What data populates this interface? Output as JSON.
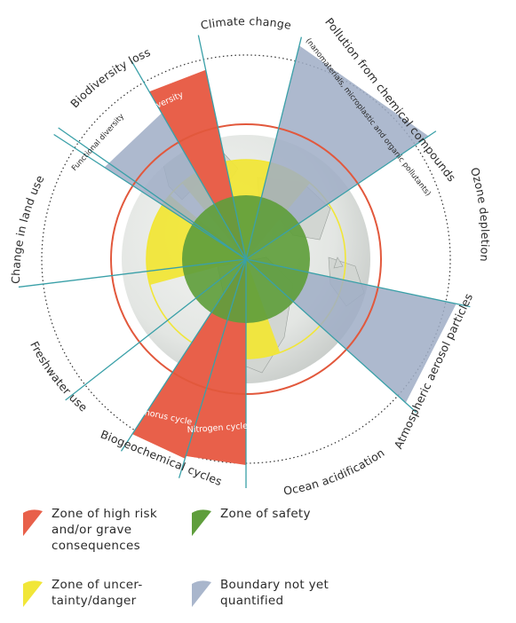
{
  "diagram": {
    "sectors": {
      "climate": "Climate change",
      "pollution": "Pollution from chemical compounds",
      "pollution_sub": "(nanomaterials, microplastic and organic pollutants)",
      "ozone": "Ozone depletion",
      "aerosol": "Atmospheric aerosol particles",
      "ocean": "Ocean acidification",
      "biogeo": "Biogeochemical cycles",
      "nitrogen": "Nitrogen cycle",
      "phosphorus": "Phosphorus cycle",
      "freshwater": "Freshwater use",
      "landuse": "Change in land use",
      "biodiversity": "Biodiversity loss",
      "genetic": "Genetic diversity",
      "functional": "Functional diversity"
    }
  },
  "legend": {
    "high_risk": "Zone of high risk\nand/or grave\nconsequences",
    "safety": "Zone of safety",
    "uncertainty": "Zone of uncer-\ntainty/danger",
    "not_quantified": "Boundary not yet\nquantified"
  },
  "colors": {
    "red": "#e8604a",
    "yellow": "#f1e638",
    "green": "#5f9e3c",
    "blue": "#a9b6cc",
    "teal": "#3aa0a8",
    "orange_ring": "#e2583c"
  }
}
